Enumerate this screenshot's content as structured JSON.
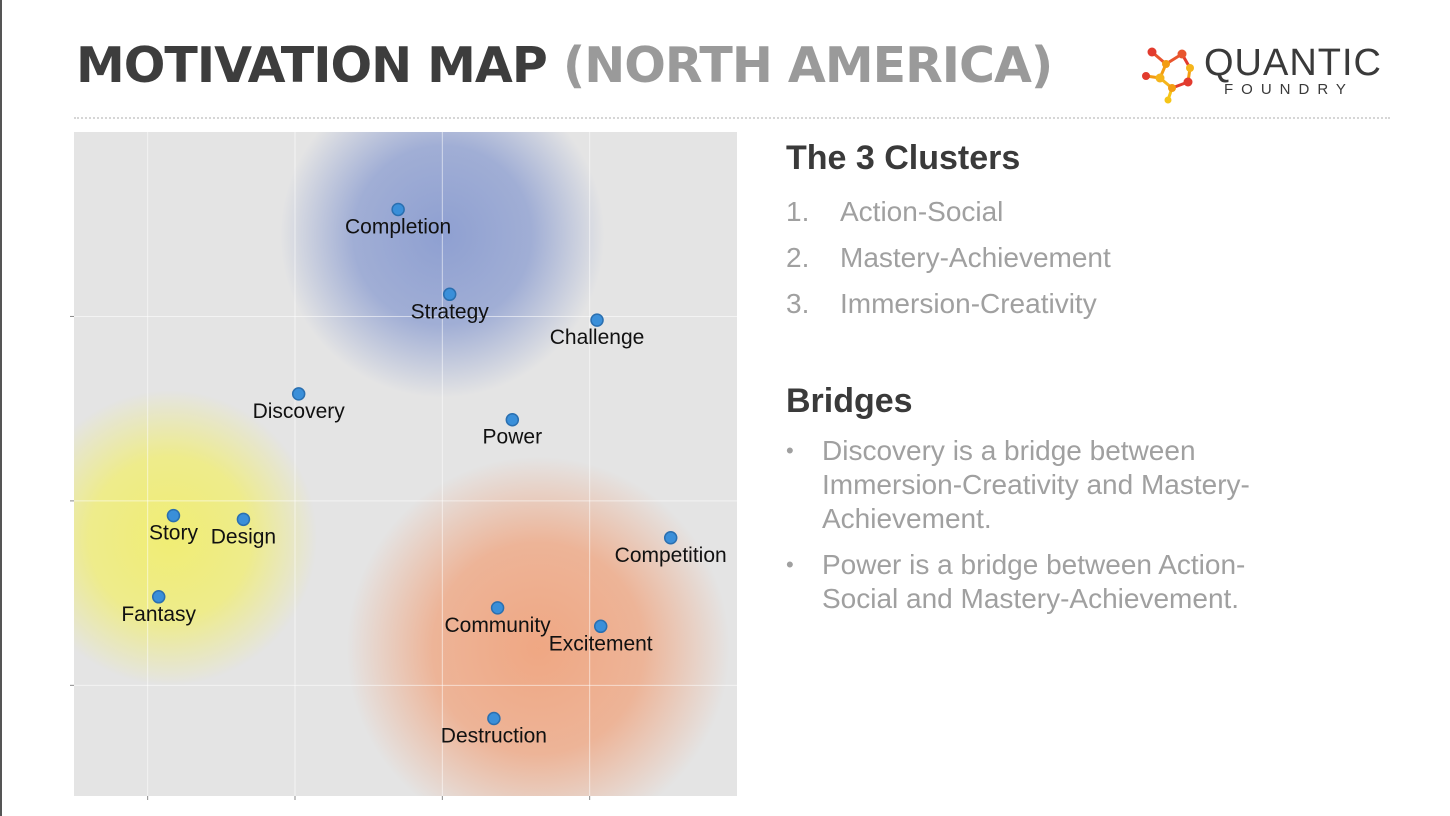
{
  "header": {
    "title_main": "MOTIVATION MAP",
    "title_sub": "(NORTH AMERICA)"
  },
  "logo": {
    "word": "QUANTIC",
    "sub": "FOUNDRY",
    "colors": [
      "#e23b2e",
      "#f39c12",
      "#f5c518"
    ]
  },
  "chart_data": {
    "type": "scatter",
    "title": "",
    "xlabel": "",
    "ylabel": "",
    "xlim": [
      0,
      9
    ],
    "ylim": [
      0,
      9
    ],
    "grid": true,
    "legend": "none",
    "point_color": "#3a8fd9",
    "clusters": [
      {
        "name": "Mastery-Achievement",
        "color": "#8a9cd0",
        "x": 5.0,
        "y": 7.6,
        "spread": 2.2
      },
      {
        "name": "Immersion-Creativity",
        "color": "#f1ee6e",
        "x": 1.3,
        "y": 3.5,
        "spread": 2.0
      },
      {
        "name": "Action-Social",
        "color": "#f0a47e",
        "x": 6.3,
        "y": 2.0,
        "spread": 2.6
      }
    ],
    "points": [
      {
        "label": "Completion",
        "x": 4.4,
        "y": 7.95
      },
      {
        "label": "Strategy",
        "x": 5.1,
        "y": 6.8
      },
      {
        "label": "Challenge",
        "x": 7.1,
        "y": 6.45
      },
      {
        "label": "Discovery",
        "x": 3.05,
        "y": 5.45
      },
      {
        "label": "Power",
        "x": 5.95,
        "y": 5.1
      },
      {
        "label": "Story",
        "x": 1.35,
        "y": 3.8
      },
      {
        "label": "Design",
        "x": 2.3,
        "y": 3.75
      },
      {
        "label": "Competition",
        "x": 8.1,
        "y": 3.5
      },
      {
        "label": "Fantasy",
        "x": 1.15,
        "y": 2.7
      },
      {
        "label": "Community",
        "x": 5.75,
        "y": 2.55
      },
      {
        "label": "Excitement",
        "x": 7.15,
        "y": 2.3
      },
      {
        "label": "Destruction",
        "x": 5.7,
        "y": 1.05
      }
    ]
  },
  "panel": {
    "clusters_title": "The 3 Clusters",
    "clusters": [
      {
        "num": "1.",
        "label": "Action-Social"
      },
      {
        "num": "2.",
        "label": "Mastery-Achievement"
      },
      {
        "num": "3.",
        "label": "Immersion-Creativity"
      }
    ],
    "bridges_title": "Bridges",
    "bridges": [
      {
        "bullet": "•",
        "text": "Discovery is a bridge between Immersion-Creativity and Mastery-Achievement."
      },
      {
        "bullet": "•",
        "text": "Power is a bridge between Action-Social and Mastery-Achievement."
      }
    ]
  }
}
